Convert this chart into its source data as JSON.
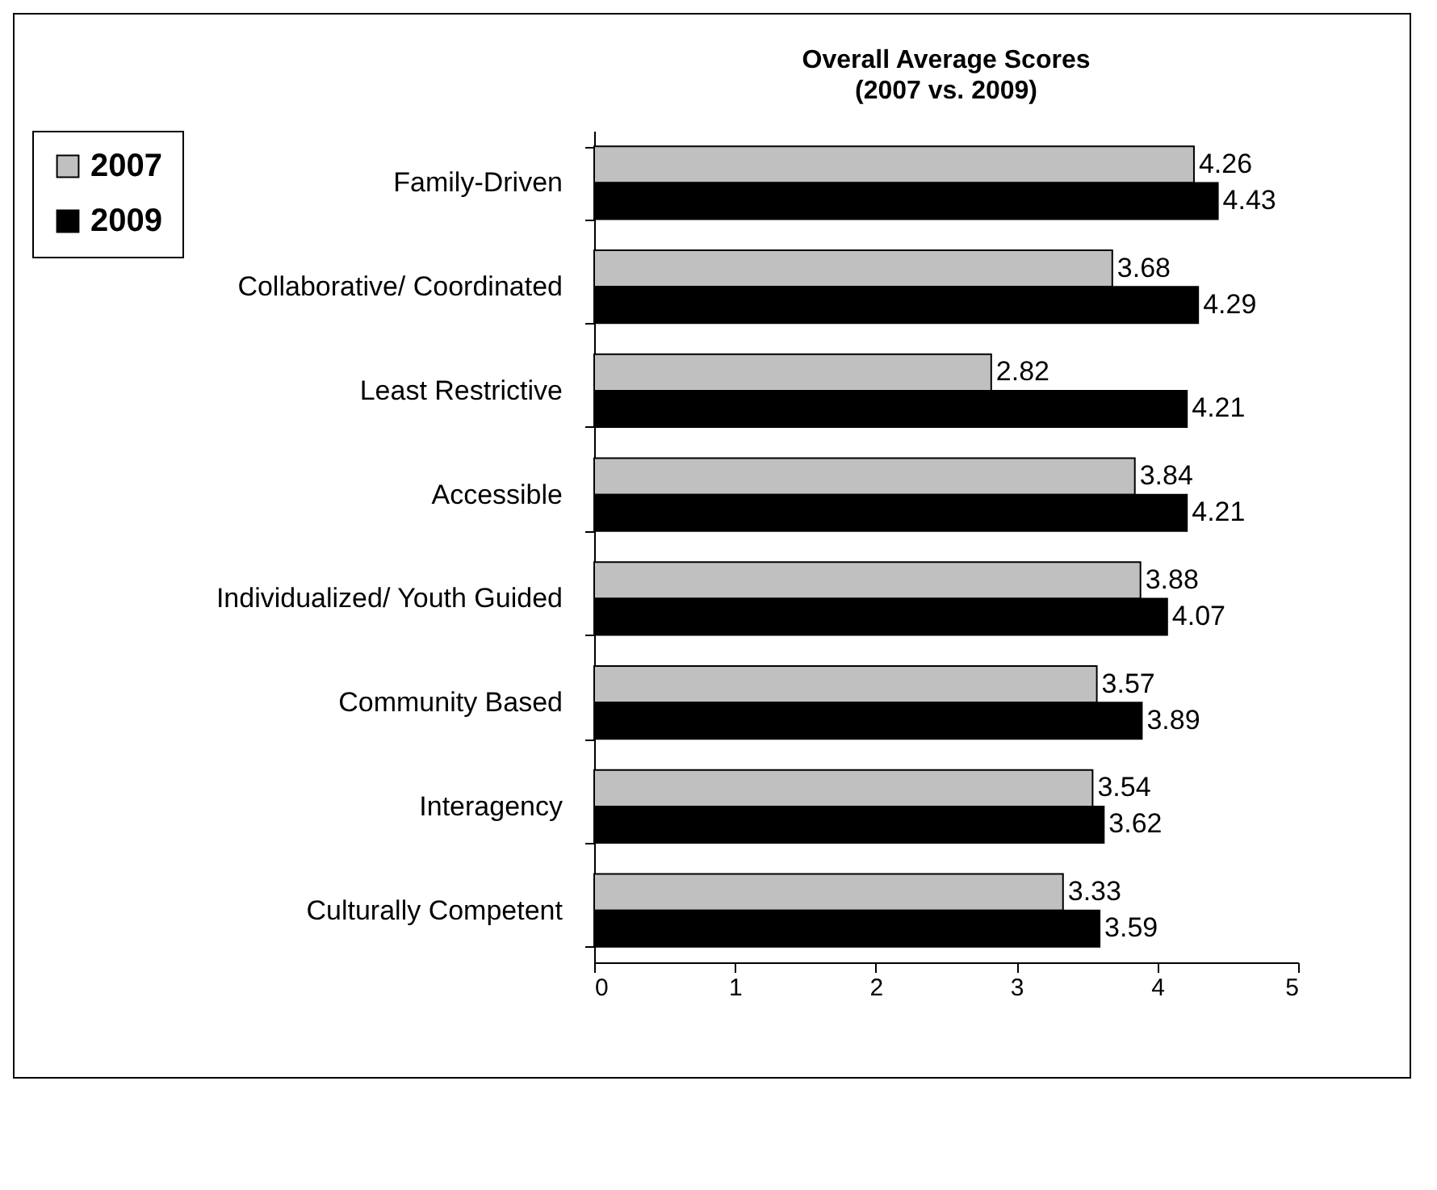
{
  "chart_data": {
    "type": "bar",
    "orientation": "horizontal",
    "title": "Overall Average Scores",
    "subtitle": "(2007 vs. 2009)",
    "categories": [
      "Family-Driven",
      "Collaborative/ Coordinated",
      "Least Restrictive",
      "Accessible",
      "Individualized/ Youth Guided",
      "Community Based",
      "Interagency",
      "Culturally Competent"
    ],
    "series": [
      {
        "name": "2007",
        "color": "#c0c0c0",
        "values": [
          4.26,
          3.68,
          2.82,
          3.84,
          3.88,
          3.57,
          3.54,
          3.33
        ]
      },
      {
        "name": "2009",
        "color": "#000000",
        "values": [
          4.43,
          4.29,
          4.21,
          4.21,
          4.07,
          3.89,
          3.62,
          3.59
        ]
      }
    ],
    "xlim": [
      0,
      5
    ],
    "xticks": [
      0,
      1,
      2,
      3,
      4,
      5
    ],
    "grid": false,
    "legend": "left",
    "data_labels": true
  }
}
